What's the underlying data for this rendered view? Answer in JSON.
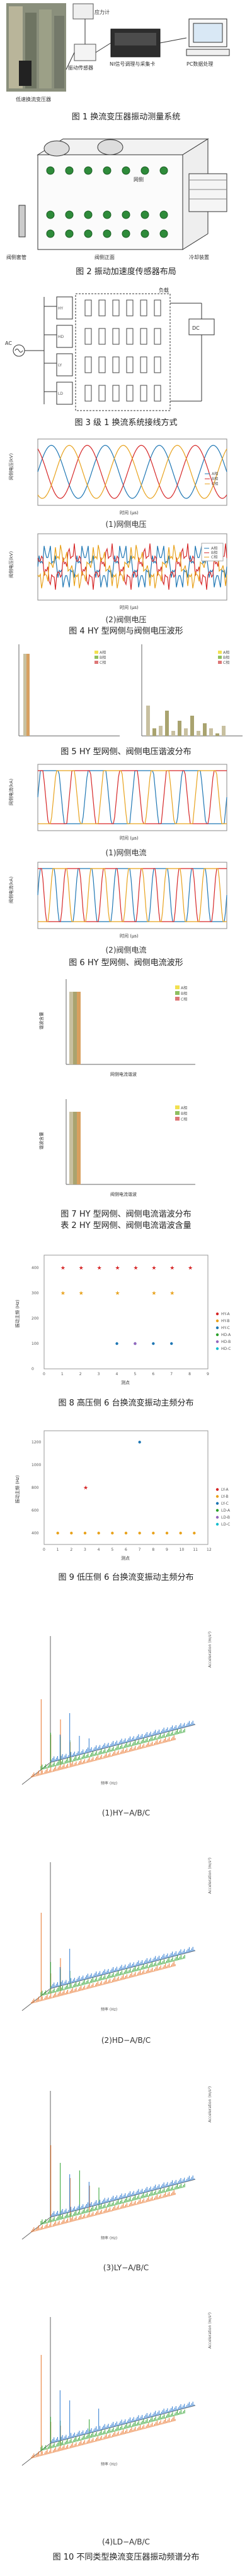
{
  "captions": {
    "fig1": "图 1  换流变压器振动测量系统",
    "fig2": "图 2  振动加速度传感器布局",
    "fig3": "图 3  级 1 换流系统接线方式",
    "fig4_a": "(1)网侧电压",
    "fig4_b": "(2)阀侧电压",
    "fig4": "图 4  HY 型网侧与阀侧电压波形",
    "fig5": "图 5  HY 型网侧、阀侧电压谐波分布",
    "fig6_a": "(1)网侧电流",
    "fig6_b": "(2)阀侧电流",
    "fig6": "图 6  HY 型网侧、阀侧电流波形",
    "fig7": "图 7  HY 型网侧、阀侧电流谐波分布",
    "table2": "表 2  HY 型网侧、阀侧电流谐波含量",
    "fig8": "图 8  高压侧 6 台换流变振动主频分布",
    "fig9": "图 9  低压侧 6 台换流变振动主频分布",
    "fig10_a": "(1)HY−A/B/C",
    "fig10_b": "(2)HD−A/B/C",
    "fig10_c": "(3)LY−A/B/C",
    "fig10_d": "(4)LD−A/B/C",
    "fig10": "图 10  不同类型换流变压器振动频谱分布"
  },
  "fig1": {
    "labels": [
      "低速换流变压器",
      "应力计",
      "振动传感器",
      "NI信号调理与采集卡",
      "PC数据处理"
    ],
    "icons": [
      "transformer-photo",
      "sensor-icon",
      "daq-card-icon",
      "pc-icon"
    ]
  },
  "fig2": {
    "labels": [
      "网侧",
      "阀侧套管",
      "阀侧正面",
      "冷却装置"
    ]
  },
  "fig3": {
    "labels": [
      "AC",
      "HY",
      "HD",
      "LY",
      "LD",
      "DC",
      "负载"
    ]
  },
  "fig4a": {
    "ylabel": "网侧电压(kV)",
    "xlabel": "时间 (μs)",
    "legend": [
      "A相",
      "B相",
      "C相"
    ],
    "colors": [
      "#1f77b4",
      "#d62728",
      "#e8a21c"
    ]
  },
  "fig4b": {
    "ylabel": "阀侧电压(kV)",
    "xlabel": "时间 (μs)",
    "legend": [
      "A相",
      "B相",
      "C相"
    ],
    "colors": [
      "#1f77b4",
      "#d62728",
      "#e8a21c"
    ]
  },
  "fig5": {
    "legend": [
      "A相",
      "B相",
      "C相"
    ]
  },
  "fig6a": {
    "ylabel": "网侧电流(kA)",
    "xlabel": "时间 (μs)",
    "legend": [
      "A相",
      "B相",
      "C相"
    ]
  },
  "fig6b": {
    "ylabel": "阀侧电流(kA)",
    "xlabel": "时间 (μs)",
    "legend": [
      "A相",
      "B相",
      "C相"
    ]
  },
  "fig7": {
    "top": {
      "ylabel": "谐波含量",
      "xlabel": "网侧电流谐波",
      "legend": [
        "A相",
        "B相",
        "C相"
      ]
    },
    "bottom": {
      "ylabel": "谐波含量",
      "xlabel": "阀侧电流谐波",
      "legend": [
        "A相",
        "B相",
        "C相"
      ]
    }
  },
  "chart_data": [
    {
      "id": "fig8",
      "type": "scatter",
      "ylabel": "振动主频 (Hz)",
      "xlabel": "测点",
      "xlim": [
        0,
        9
      ],
      "ylim": [
        0,
        450
      ],
      "series": [
        {
          "name": "HY-A",
          "color": "#d62728",
          "marker": "star",
          "x": [
            1,
            2,
            3,
            4,
            5,
            6,
            7,
            8
          ],
          "y": [
            400,
            400,
            400,
            400,
            400,
            400,
            400,
            400
          ]
        },
        {
          "name": "HY-B",
          "color": "#e8a21c",
          "marker": "star",
          "x": [
            1,
            2,
            4,
            6,
            7
          ],
          "y": [
            300,
            300,
            300,
            300,
            300
          ]
        },
        {
          "name": "HY-C",
          "color": "#1f77b4",
          "marker": "dot",
          "x": [
            4,
            5,
            6,
            7
          ],
          "y": [
            100,
            100,
            100,
            100
          ]
        },
        {
          "name": "HD-A",
          "color": "#2ca02c",
          "marker": "dot",
          "x": [],
          "y": []
        },
        {
          "name": "HD-B",
          "color": "#9467bd",
          "marker": "dot",
          "x": [
            5
          ],
          "y": [
            100
          ]
        },
        {
          "name": "HD-C",
          "color": "#17becf",
          "marker": "dot",
          "x": [],
          "y": []
        }
      ]
    },
    {
      "id": "fig9",
      "type": "scatter",
      "ylabel": "振动主频 (Hz)",
      "xlabel": "测点",
      "xlim": [
        0,
        12
      ],
      "ylim": [
        300,
        1300
      ],
      "series": [
        {
          "name": "LY-A",
          "color": "#d62728",
          "marker": "star",
          "x": [
            3
          ],
          "y": [
            800
          ]
        },
        {
          "name": "LY-B",
          "color": "#e8a21c",
          "marker": "dot",
          "x": [
            1,
            2,
            3,
            4,
            5,
            6,
            7,
            8,
            9,
            10,
            11
          ],
          "y": [
            400,
            400,
            400,
            400,
            400,
            400,
            400,
            400,
            400,
            400,
            400
          ]
        },
        {
          "name": "LY-C",
          "color": "#1f77b4",
          "marker": "dot",
          "x": [
            7
          ],
          "y": [
            1200
          ]
        },
        {
          "name": "LD-A",
          "color": "#2ca02c",
          "marker": "dot",
          "x": [],
          "y": []
        },
        {
          "name": "LD-B",
          "color": "#9467bd",
          "marker": "dot",
          "x": [],
          "y": []
        },
        {
          "name": "LD-C",
          "color": "#17becf",
          "marker": "dot",
          "x": [],
          "y": []
        }
      ]
    }
  ],
  "fig10": {
    "ylabel": "Acceleration (m/s²)",
    "xlabel": "频率 (Hz)"
  }
}
